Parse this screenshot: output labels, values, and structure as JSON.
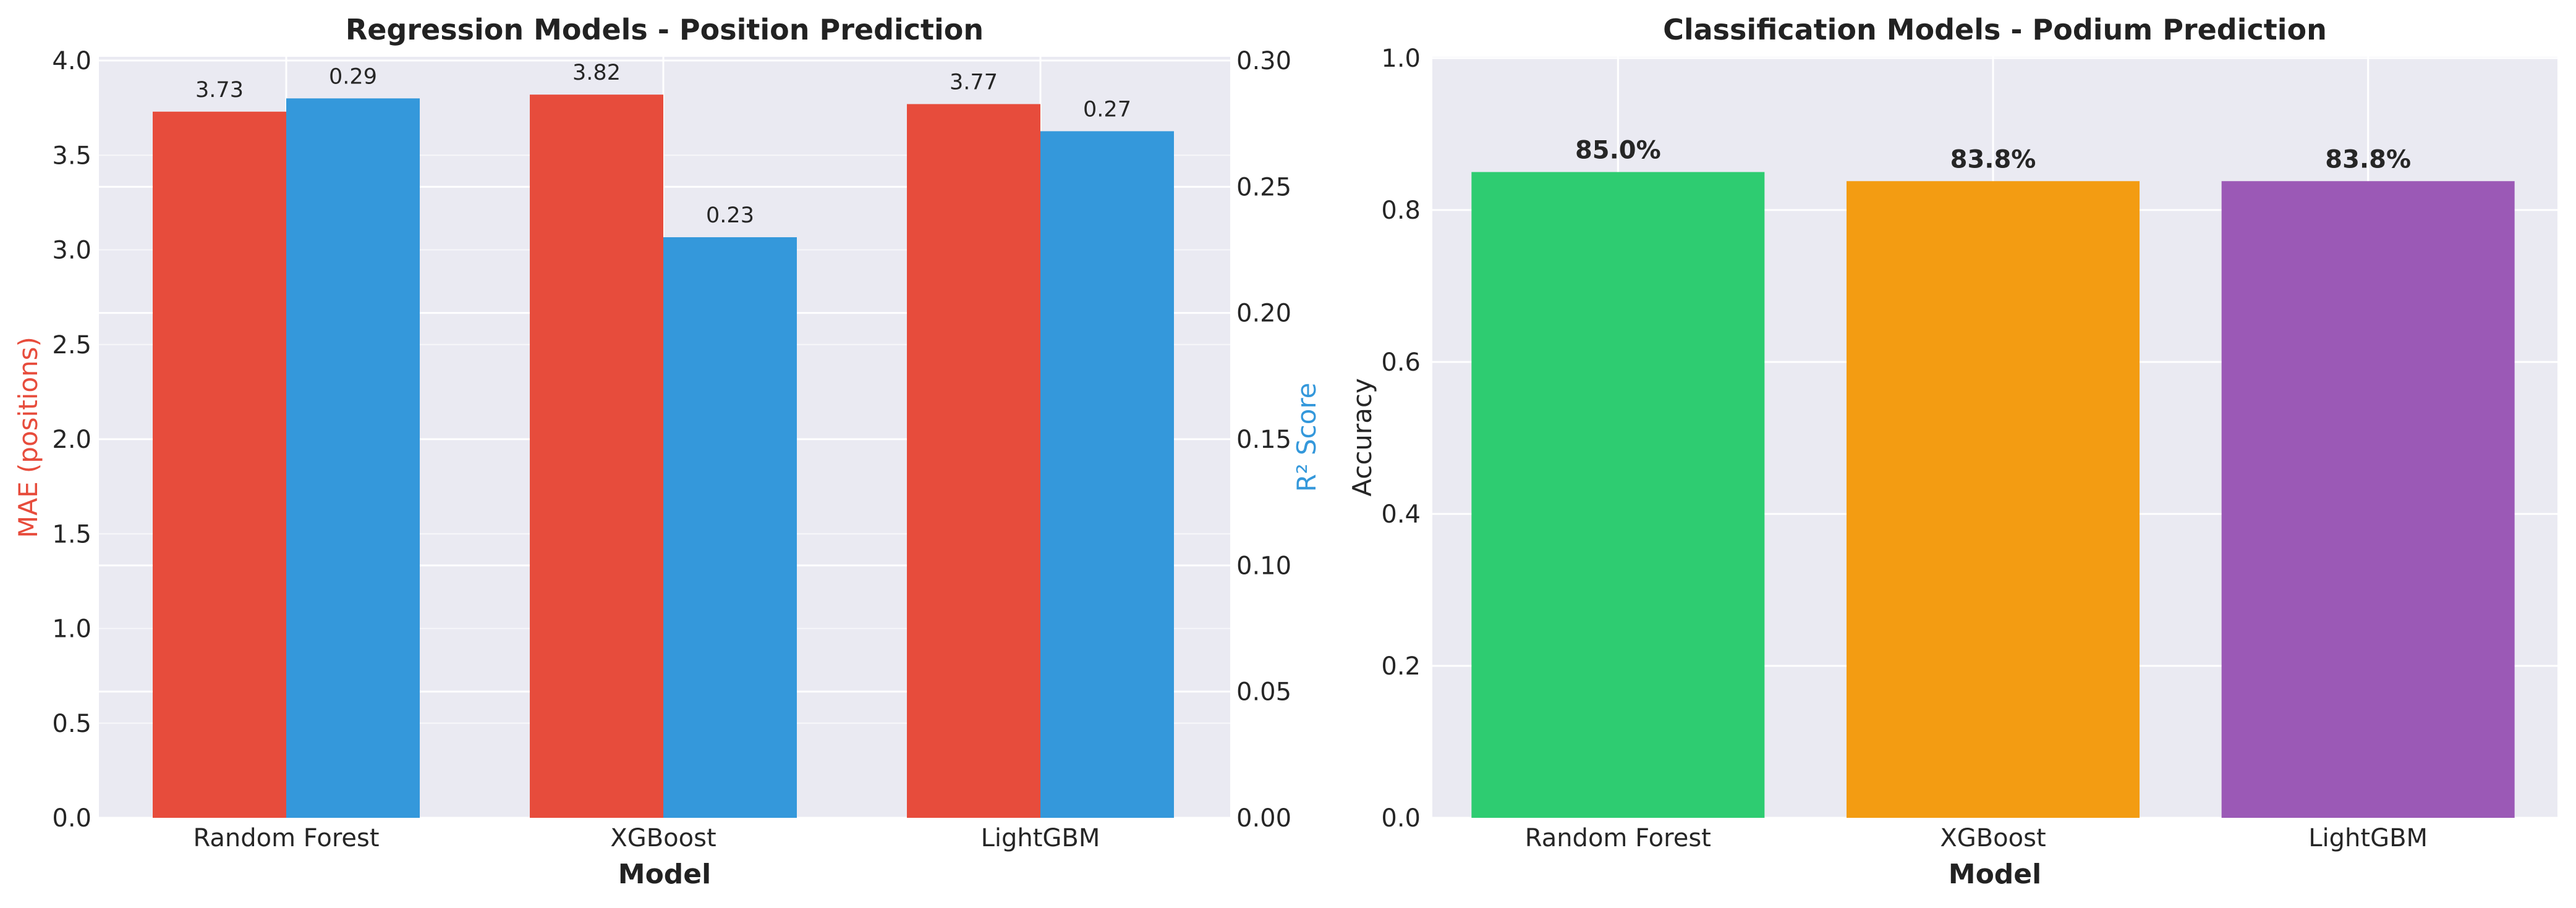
{
  "chart_data": [
    {
      "type": "bar",
      "title": "Regression Models - Position Prediction",
      "xlabel": "Model",
      "ylabel": "MAE (positions)",
      "y2label": "R² Score",
      "categories": [
        "Random Forest",
        "XGBoost",
        "LightGBM"
      ],
      "series": [
        {
          "name": "MAE (positions)",
          "axis": "left",
          "color": "#e74c3c",
          "values": [
            3.73,
            3.82,
            3.77
          ],
          "labels": [
            "3.73",
            "3.82",
            "3.77"
          ]
        },
        {
          "name": "R² Score",
          "axis": "right",
          "color": "#3498db",
          "values": [
            0.285,
            0.23,
            0.272
          ],
          "labels": [
            "0.29",
            "0.23",
            "0.27"
          ]
        }
      ],
      "ylim": [
        0,
        4.0
      ],
      "y2lim": [
        0,
        0.3
      ],
      "yticks": [
        "0.0",
        "0.5",
        "1.0",
        "1.5",
        "2.0",
        "2.5",
        "3.0",
        "3.5",
        "4.0"
      ],
      "y2ticks": [
        "0.00",
        "0.05",
        "0.10",
        "0.15",
        "0.20",
        "0.25",
        "0.30"
      ],
      "grid": true,
      "colors": {
        "left_axis": "#e74c3c",
        "right_axis": "#3498db"
      }
    },
    {
      "type": "bar",
      "title": "Classification Models - Podium Prediction",
      "xlabel": "Model",
      "ylabel": "Accuracy",
      "categories": [
        "Random Forest",
        "XGBoost",
        "LightGBM"
      ],
      "values": [
        0.85,
        0.838,
        0.838
      ],
      "labels": [
        "85.0%",
        "83.8%",
        "83.8%"
      ],
      "colors": [
        "#2ecc71",
        "#f39c12",
        "#9b59b6"
      ],
      "ylim": [
        0,
        1.0
      ],
      "yticks": [
        "0.0",
        "0.2",
        "0.4",
        "0.6",
        "0.8",
        "1.0"
      ],
      "grid": true
    }
  ]
}
